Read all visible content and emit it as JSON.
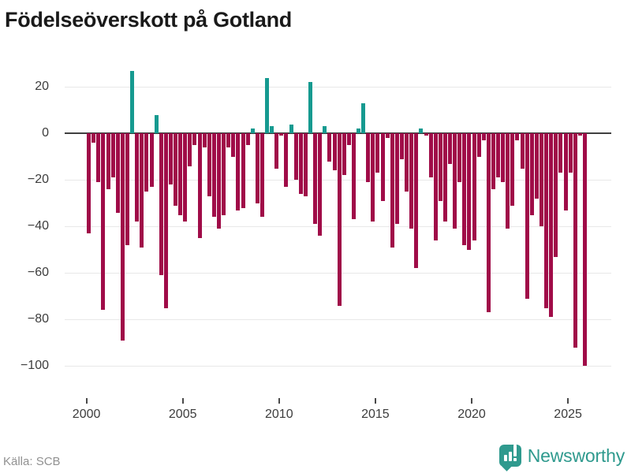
{
  "title": "Födelseöverskott på Gotland",
  "source": "Källa: SCB",
  "brand": {
    "name": "Newsworthy",
    "color": "#2f9a8e"
  },
  "colors": {
    "positive": "#169a90",
    "negative": "#a00c48",
    "grid": "#e8e8e8",
    "zero_line": "#3f3f3f"
  },
  "chart_data": {
    "type": "bar",
    "title": "Födelseöverskott på Gotland",
    "frequency": "quarterly",
    "start_year": 2000,
    "start_quarter": 1,
    "x_tick_years": [
      2000,
      2005,
      2010,
      2015,
      2020,
      2025
    ],
    "y_ticks": [
      20,
      0,
      -20,
      -40,
      -60,
      -80,
      -100
    ],
    "y_tick_labels": [
      "20",
      "0",
      "−20",
      "−40",
      "−60",
      "−80",
      "−100"
    ],
    "ylim": [
      -105,
      27
    ],
    "grid": "horizontal",
    "legend": "none",
    "values": [
      -43,
      -4,
      -21,
      -76,
      -24,
      -19,
      -34,
      -89,
      -48,
      27,
      -38,
      -49,
      -25,
      -23,
      8,
      -61,
      -75,
      -22,
      -31,
      -35,
      -38,
      -14,
      -5,
      -45,
      -6,
      -27,
      -36,
      -41,
      -35,
      -6,
      -10,
      -33,
      -32,
      -5,
      2,
      -30,
      -36,
      24,
      3,
      -15,
      -1,
      -23,
      4,
      -20,
      -26,
      -27,
      22,
      -39,
      -44,
      3,
      -12,
      -16,
      -74,
      -18,
      -5,
      -37,
      2,
      13,
      -21,
      -38,
      -17,
      -29,
      -2,
      -49,
      -39,
      -11,
      -25,
      -41,
      -58,
      2,
      -1,
      -19,
      -46,
      -29,
      -38,
      -13,
      -41,
      -21,
      -48,
      -50,
      -46,
      -10,
      -3,
      -77,
      -24,
      -19,
      -21,
      -41,
      -31,
      -3,
      -15,
      -71,
      -35,
      -28,
      -40,
      -75,
      -79,
      -53,
      -17,
      -33,
      -17,
      -92,
      -1,
      -100
    ]
  }
}
